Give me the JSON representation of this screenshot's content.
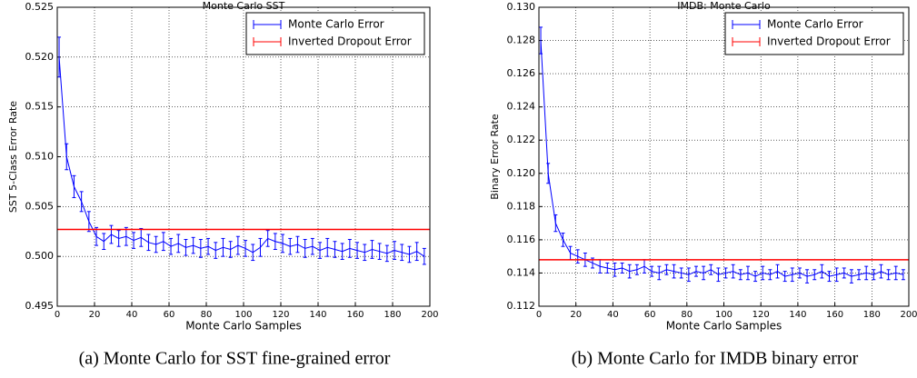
{
  "chart_data": [
    {
      "type": "line",
      "title": "Monte Carlo SST",
      "xlabel": "Monte Carlo Samples",
      "ylabel": "SST 5-Class Error Rate",
      "caption": "(a) Monte Carlo for SST fine-grained error",
      "xlim": [
        0,
        200
      ],
      "xticks": [
        0,
        20,
        40,
        60,
        80,
        100,
        120,
        140,
        160,
        180,
        200
      ],
      "ylim": [
        0.495,
        0.525
      ],
      "yticks": [
        0.495,
        {
          "value": 0.5,
          "label": "0.500"
        },
        0.505,
        {
          "value": 0.51,
          "label": "0.510"
        },
        0.515,
        {
          "value": 0.52,
          "label": "0.520"
        },
        0.525
      ],
      "grid": true,
      "legend": "upper right",
      "x": [
        1,
        5,
        9,
        13,
        17,
        21,
        25,
        29,
        33,
        37,
        41,
        45,
        49,
        53,
        57,
        61,
        65,
        69,
        73,
        77,
        81,
        85,
        89,
        93,
        97,
        101,
        105,
        109,
        113,
        117,
        121,
        125,
        129,
        133,
        137,
        141,
        145,
        149,
        153,
        157,
        161,
        165,
        169,
        173,
        177,
        181,
        185,
        189,
        193,
        197
      ],
      "series": [
        {
          "name": "Monte Carlo Error",
          "color": "#0000ff",
          "values": [
            0.52,
            0.51,
            0.507,
            0.5055,
            0.5035,
            0.502,
            0.5015,
            0.5022,
            0.5018,
            0.502,
            0.5016,
            0.5019,
            0.5014,
            0.5012,
            0.5015,
            0.501,
            0.5013,
            0.5009,
            0.5011,
            0.5008,
            0.501,
            0.5006,
            0.5009,
            0.5007,
            0.5011,
            0.5008,
            0.5004,
            0.5009,
            0.5018,
            0.5015,
            0.5013,
            0.501,
            0.5012,
            0.5008,
            0.501,
            0.5006,
            0.5009,
            0.5007,
            0.5005,
            0.5008,
            0.5006,
            0.5004,
            0.5007,
            0.5005,
            0.5003,
            0.5006,
            0.5004,
            0.5002,
            0.5005,
            0.5
          ],
          "errors": [
            0.002,
            0.0013,
            0.0011,
            0.001,
            0.001,
            0.0009,
            0.0008,
            0.0009,
            0.0008,
            0.0009,
            0.0008,
            0.0009,
            0.0008,
            0.0008,
            0.0009,
            0.0008,
            0.0009,
            0.0008,
            0.0008,
            0.0009,
            0.0008,
            0.0008,
            0.0009,
            0.0008,
            0.0009,
            0.0008,
            0.0008,
            0.0009,
            0.0008,
            0.0008,
            0.0009,
            0.0008,
            0.0008,
            0.0009,
            0.0008,
            0.0008,
            0.0009,
            0.0008,
            0.0008,
            0.0009,
            0.0008,
            0.0008,
            0.0009,
            0.0008,
            0.0008,
            0.0009,
            0.0008,
            0.0008,
            0.0009,
            0.0008
          ]
        },
        {
          "name": "Inverted Dropout Error",
          "color": "#ff0000",
          "y": 0.5027
        }
      ]
    },
    {
      "type": "line",
      "title": "IMDB: Monte Carlo",
      "xlabel": "Monte Carlo Samples",
      "ylabel": "Binary Error Rate",
      "caption": "(b) Monte Carlo for IMDB binary error",
      "xlim": [
        0,
        200
      ],
      "xticks": [
        0,
        20,
        40,
        60,
        80,
        100,
        120,
        140,
        160,
        180,
        200
      ],
      "ylim": [
        0.112,
        0.13
      ],
      "yticks": [
        0.112,
        0.114,
        0.116,
        0.118,
        {
          "value": 0.12,
          "label": "0.120"
        },
        0.122,
        0.124,
        0.126,
        0.128,
        {
          "value": 0.13,
          "label": "0.130"
        }
      ],
      "grid": true,
      "legend": "upper right",
      "x": [
        1,
        5,
        9,
        13,
        17,
        21,
        25,
        29,
        33,
        37,
        41,
        45,
        49,
        53,
        57,
        61,
        65,
        69,
        73,
        77,
        81,
        85,
        89,
        93,
        97,
        101,
        105,
        109,
        113,
        117,
        121,
        125,
        129,
        133,
        137,
        141,
        145,
        149,
        153,
        157,
        161,
        165,
        169,
        173,
        177,
        181,
        185,
        189,
        193,
        197
      ],
      "series": [
        {
          "name": "Monte Carlo Error",
          "color": "#0000ff",
          "values": [
            0.128,
            0.12,
            0.117,
            0.116,
            0.1152,
            0.115,
            0.1148,
            0.1146,
            0.1144,
            0.1143,
            0.1142,
            0.1143,
            0.1141,
            0.1142,
            0.1144,
            0.1141,
            0.114,
            0.1142,
            0.1141,
            0.114,
            0.1139,
            0.1141,
            0.114,
            0.1142,
            0.1139,
            0.114,
            0.1141,
            0.1139,
            0.114,
            0.1138,
            0.114,
            0.1139,
            0.1141,
            0.1138,
            0.1139,
            0.114,
            0.1138,
            0.1139,
            0.1141,
            0.1138,
            0.1139,
            0.114,
            0.1138,
            0.1139,
            0.114,
            0.1139,
            0.1141,
            0.1139,
            0.114,
            0.1139
          ],
          "errors": [
            0.0008,
            0.0006,
            0.0005,
            0.0004,
            0.0004,
            0.0004,
            0.0004,
            0.0003,
            0.0004,
            0.0003,
            0.0004,
            0.0003,
            0.0004,
            0.0003,
            0.0004,
            0.0003,
            0.0004,
            0.0003,
            0.0004,
            0.0003,
            0.0004,
            0.0003,
            0.0004,
            0.0003,
            0.0004,
            0.0003,
            0.0004,
            0.0003,
            0.0004,
            0.0003,
            0.0004,
            0.0003,
            0.0004,
            0.0003,
            0.0004,
            0.0003,
            0.0004,
            0.0003,
            0.0004,
            0.0003,
            0.0004,
            0.0003,
            0.0004,
            0.0003,
            0.0004,
            0.0003,
            0.0004,
            0.0003,
            0.0004,
            0.0003
          ]
        },
        {
          "name": "Inverted Dropout Error",
          "color": "#ff0000",
          "y": 0.1148
        }
      ]
    }
  ]
}
